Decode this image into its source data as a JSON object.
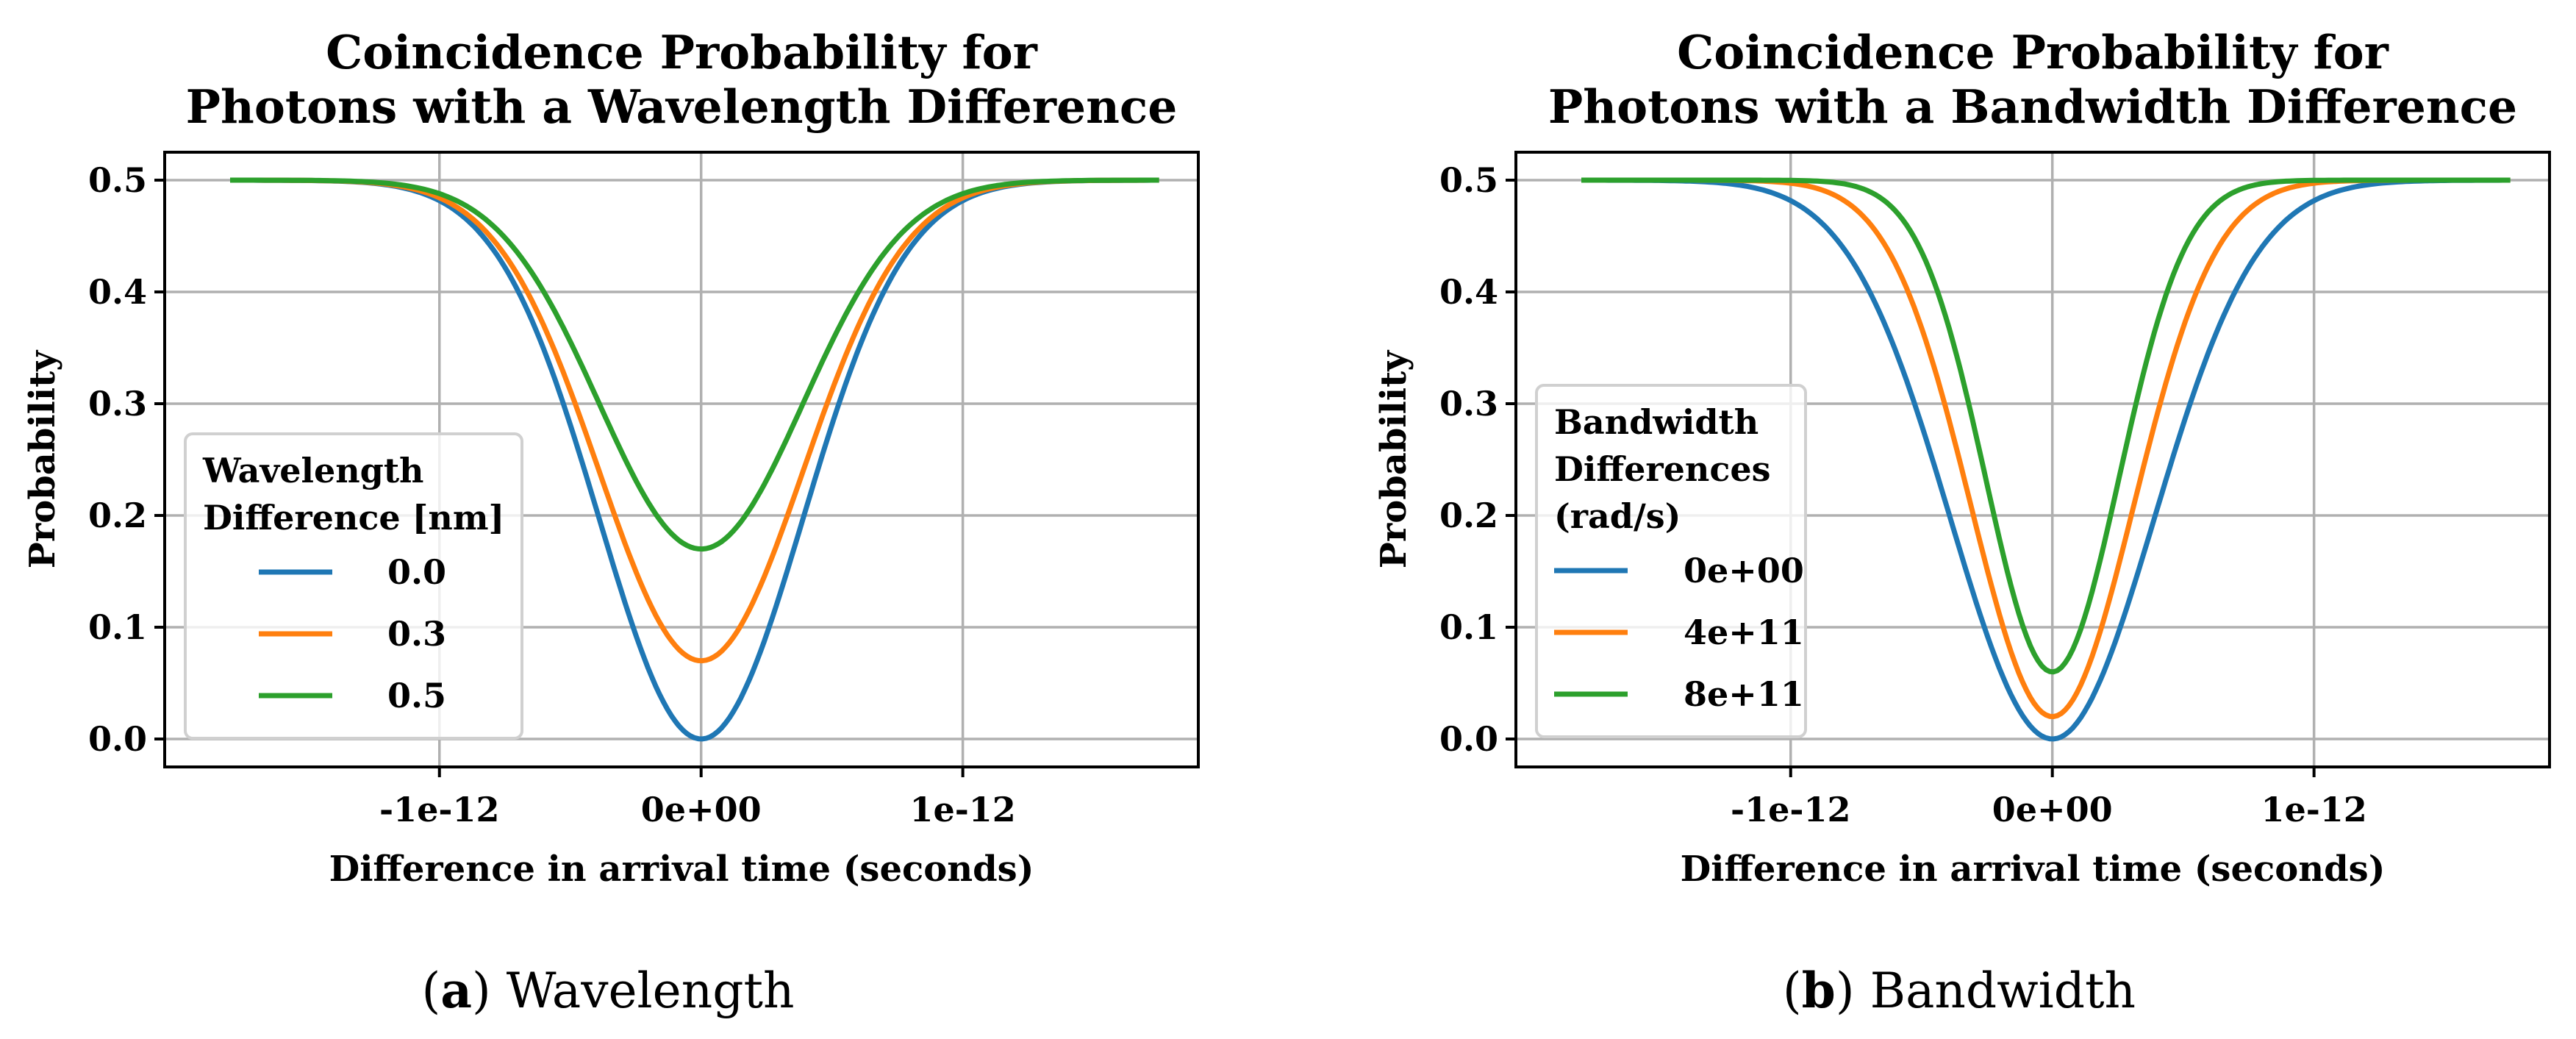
{
  "chart_data": [
    {
      "type": "line",
      "title_line1": "Coincidence Probability for",
      "title_line2": "Photons with a Wavelength Difference",
      "xlabel": "Difference in arrival time (seconds)",
      "ylabel": "Probability",
      "xlim": [
        -2.05e-12,
        1.9e-12
      ],
      "ylim": [
        -0.025,
        0.525
      ],
      "xticks": [
        {
          "value": -1e-12,
          "label": "-1e-12"
        },
        {
          "value": 0,
          "label": "0e+00"
        },
        {
          "value": 1e-12,
          "label": "1e-12"
        }
      ],
      "yticks": [
        {
          "value": 0.0,
          "label": "0.0"
        },
        {
          "value": 0.1,
          "label": "0.1"
        },
        {
          "value": 0.2,
          "label": "0.2"
        },
        {
          "value": 0.3,
          "label": "0.3"
        },
        {
          "value": 0.4,
          "label": "0.4"
        },
        {
          "value": 0.5,
          "label": "0.5"
        }
      ],
      "grid": true,
      "x_range": [
        -1.8e-12,
        1.75e-12
      ],
      "legend": {
        "title_lines": [
          "Wavelength",
          "Difference [nm]"
        ],
        "placement": "center-left"
      },
      "series": [
        {
          "name": "0.0",
          "color": "#1f77b4",
          "min_value": 0.0,
          "width": 5.5e-13
        },
        {
          "name": "0.3",
          "color": "#ff7f0e",
          "min_value": 0.07,
          "width": 5.5e-13
        },
        {
          "name": "0.5",
          "color": "#2ca02c",
          "min_value": 0.17,
          "width": 5.5e-13
        }
      ],
      "caption_letter": "a",
      "caption_text": "Wavelength"
    },
    {
      "type": "line",
      "title_line1": "Coincidence Probability for",
      "title_line2": "Photons with a Bandwidth Difference",
      "xlabel": "Difference in arrival time (seconds)",
      "ylabel": "Probability",
      "xlim": [
        -2.05e-12,
        1.9e-12
      ],
      "ylim": [
        -0.025,
        0.525
      ],
      "xticks": [
        {
          "value": -1e-12,
          "label": "-1e-12"
        },
        {
          "value": 0,
          "label": "0e+00"
        },
        {
          "value": 1e-12,
          "label": "1e-12"
        }
      ],
      "yticks": [
        {
          "value": 0.0,
          "label": "0.0"
        },
        {
          "value": 0.1,
          "label": "0.1"
        },
        {
          "value": 0.2,
          "label": "0.2"
        },
        {
          "value": 0.3,
          "label": "0.3"
        },
        {
          "value": 0.4,
          "label": "0.4"
        },
        {
          "value": 0.5,
          "label": "0.5"
        }
      ],
      "grid": true,
      "x_range": [
        -1.8e-12,
        1.75e-12
      ],
      "legend": {
        "title_lines": [
          "Bandwidth",
          "Differences",
          "(rad/s)"
        ],
        "placement": "center-left"
      },
      "series": [
        {
          "name": "0e+00",
          "color": "#1f77b4",
          "min_value": 0.0,
          "width": 5.5e-13
        },
        {
          "name": "4e+11",
          "color": "#ff7f0e",
          "min_value": 0.02,
          "width": 4.4e-13
        },
        {
          "name": "8e+11",
          "color": "#2ca02c",
          "min_value": 0.06,
          "width": 3.6e-13
        }
      ],
      "caption_letter": "b",
      "caption_text": "Bandwidth"
    }
  ]
}
